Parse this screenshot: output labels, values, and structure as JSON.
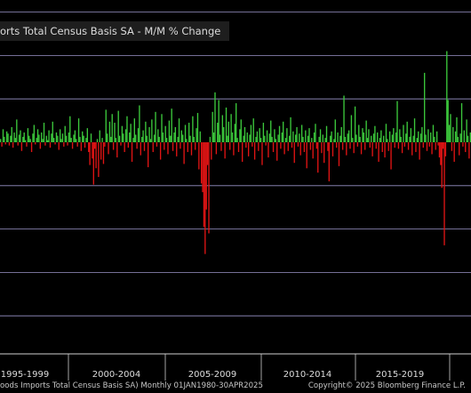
{
  "title": "orts Total Census Basis SA - M/M % Change",
  "footer": {
    "left": "oods Imports Total Census Basis SA)  Monthly 01JAN1980-30APR2025",
    "right": "Copyright© 2025 Bloomberg Finance L.P."
  },
  "colors": {
    "background": "#000000",
    "positive": "#3cc83c",
    "negative": "#e01414",
    "gridline": "#9a94c8",
    "axis": "#cfcfcf"
  },
  "chart_data": {
    "type": "bar",
    "title": "orts Total Census Basis SA - M/M % Change",
    "xlabel": "",
    "ylabel": "",
    "x_range": [
      "1992-12",
      "2025-04"
    ],
    "ylim": [
      -11,
      9
    ],
    "grid": "horizontal",
    "periods": [
      "1995-1999",
      "2000-2004",
      "2005-2009",
      "2010-2014",
      "2015-2019"
    ],
    "series": [
      {
        "values": [
          0.3,
          -0.4,
          1.2,
          0.5,
          -0.2,
          1.0,
          0.8,
          -0.3,
          0.6,
          1.4,
          -0.5,
          0.9,
          0.4,
          2.1,
          -0.3,
          0.7,
          1.1,
          -0.8,
          0.5,
          0.9,
          0.2,
          -0.4,
          1.3,
          0.6,
          0.3,
          -0.9,
          0.8,
          1.6,
          -0.2,
          0.4,
          1.2,
          0.7,
          -0.6,
          0.9,
          0.3,
          1.8,
          -0.3,
          0.6,
          0.2,
          1.1,
          -0.5,
          0.8,
          1.9,
          0.4,
          -0.2,
          0.9,
          0.6,
          -0.7,
          1.2,
          0.3,
          0.8,
          -0.4,
          1.5,
          0.6,
          -0.3,
          0.9,
          2.4,
          0.4,
          -0.6,
          0.7,
          1.1,
          0.3,
          -0.4,
          2.2,
          0.5,
          -0.8,
          1.0,
          0.6,
          -0.5,
          0.4,
          1.3,
          -0.9,
          -2.1,
          0.8,
          -1.5,
          -3.9,
          -0.6,
          -2.4,
          0.3,
          -3.2,
          1.1,
          -1.6,
          0.4,
          -2.0,
          -0.4,
          3.0,
          0.8,
          -1.1,
          1.9,
          0.5,
          2.6,
          -0.7,
          1.8,
          0.4,
          -1.4,
          2.9,
          0.6,
          -0.3,
          1.5,
          0.8,
          -0.9,
          1.2,
          2.4,
          -0.5,
          0.9,
          1.7,
          -1.8,
          0.4,
          2.2,
          0.7,
          -0.6,
          1.3,
          3.4,
          -1.2,
          0.5,
          1.1,
          -0.8,
          1.9,
          0.6,
          -2.3,
          1.4,
          0.3,
          2.1,
          -0.9,
          0.7,
          2.8,
          -0.4,
          1.2,
          0.5,
          -1.6,
          2.6,
          0.9,
          -0.7,
          1.5,
          0.4,
          -1.1,
          2.0,
          0.6,
          3.1,
          -0.8,
          0.9,
          1.4,
          -1.3,
          0.5,
          2.2,
          -0.6,
          1.1,
          0.7,
          -2.0,
          1.6,
          0.3,
          -0.9,
          1.8,
          0.6,
          -1.2,
          2.4,
          0.5,
          -0.7,
          1.3,
          2.7,
          -2.5,
          1.0,
          -3.8,
          -4.6,
          -7.8,
          -10.3,
          -6.2,
          -2.1,
          -8.4,
          0.5,
          -1.6,
          2.8,
          0.9,
          4.6,
          -1.1,
          1.8,
          3.9,
          0.7,
          -0.8,
          2.5,
          1.4,
          -1.5,
          3.2,
          0.6,
          1.9,
          -0.7,
          2.6,
          0.9,
          -1.2,
          1.7,
          3.6,
          0.4,
          -0.9,
          1.2,
          2.1,
          -1.8,
          0.6,
          1.4,
          -0.5,
          0.9,
          -1.3,
          0.7,
          1.6,
          -0.4,
          2.2,
          -1.6,
          0.5,
          1.0,
          -0.8,
          1.3,
          0.4,
          -2.1,
          1.8,
          0.6,
          -0.3,
          1.1,
          -1.4,
          0.8,
          2.0,
          0.5,
          -0.9,
          1.2,
          0.3,
          -1.7,
          0.7,
          1.5,
          -0.6,
          0.9,
          1.9,
          -1.1,
          0.4,
          1.3,
          -0.8,
          0.6,
          2.3,
          -0.5,
          1.0,
          -1.9,
          0.7,
          1.4,
          -0.4,
          0.8,
          -1.2,
          1.6,
          0.5,
          -0.9,
          1.1,
          -2.4,
          0.6,
          1.3,
          -0.7,
          0.4,
          -1.5,
          0.9,
          1.7,
          -0.6,
          -2.8,
          0.5,
          1.2,
          -1.0,
          0.7,
          -1.9,
          0.4,
          1.5,
          -0.8,
          -3.6,
          0.6,
          1.0,
          -1.3,
          0.3,
          2.1,
          -0.5,
          0.9,
          -2.2,
          0.6,
          1.4,
          -0.7,
          4.3,
          0.5,
          -1.2,
          0.8,
          1.1,
          -0.6,
          2.5,
          0.4,
          -1.0,
          3.3,
          0.7,
          -0.4,
          1.6,
          0.5,
          -1.1,
          1.3,
          0.9,
          -0.7,
          2.0,
          0.4,
          1.2,
          -0.5,
          0.6,
          -1.3,
          0.8,
          1.5,
          -0.6,
          0.9,
          -1.8,
          0.4,
          1.1,
          -0.9,
          0.6,
          -1.4,
          1.7,
          0.3,
          -0.8,
          1.0,
          -2.5,
          0.7,
          1.3,
          -0.5,
          0.9,
          3.8,
          -0.6,
          1.2,
          0.5,
          -1.0,
          1.6,
          -0.4,
          0.8,
          1.9,
          -0.7,
          0.5,
          1.3,
          -1.2,
          0.6,
          2.2,
          -0.9,
          0.4,
          1.0,
          -1.6,
          0.8,
          1.4,
          -0.5,
          6.4,
          0.7,
          -0.8,
          1.2,
          -0.4,
          0.9,
          -1.1,
          1.6,
          0.5,
          -0.7,
          1.0,
          -0.3,
          -1.4,
          -2.1,
          -4.2,
          -0.6,
          -9.5,
          -1.3,
          8.4,
          3.9,
          1.6,
          2.6,
          -0.8,
          1.4,
          -1.8,
          1.0,
          2.3,
          0.5,
          -1.2,
          0.8,
          3.6,
          -0.4,
          1.1,
          -0.9,
          2.1,
          0.6,
          -1.5,
          0.9
        ]
      }
    ]
  }
}
